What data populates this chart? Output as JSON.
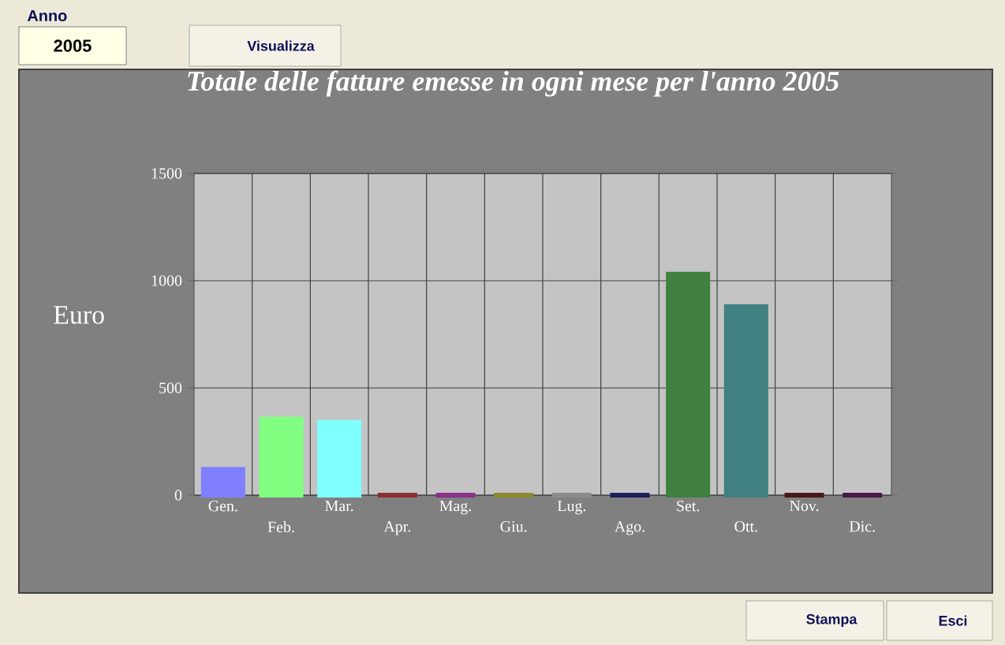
{
  "chart_data": {
    "type": "bar",
    "title": "Totale delle fatture emesse in ogni mese per l'anno 2005",
    "ylabel": "Euro",
    "categories": [
      "Gen.",
      "Feb.",
      "Mar.",
      "Apr.",
      "Mag.",
      "Giu.",
      "Lug.",
      "Ago.",
      "Set.",
      "Ott.",
      "Nov.",
      "Dic."
    ],
    "values": [
      120,
      355,
      340,
      0,
      0,
      0,
      0,
      0,
      1030,
      880,
      0,
      0
    ],
    "colors": [
      "#8080ff",
      "#80ff80",
      "#80ffff",
      "#8b3030",
      "#8b308b",
      "#8b8b30",
      "#8b8b8b",
      "#20205a",
      "#408040",
      "#408080",
      "#4a1818",
      "#4a184a"
    ],
    "ylim": [
      0,
      1500
    ],
    "yticks": [
      0,
      500,
      1000,
      1500
    ],
    "grid": true,
    "annotations": [
      "Anno",
      "2005",
      "Visualizza",
      "Stampa",
      "Esci"
    ]
  }
}
